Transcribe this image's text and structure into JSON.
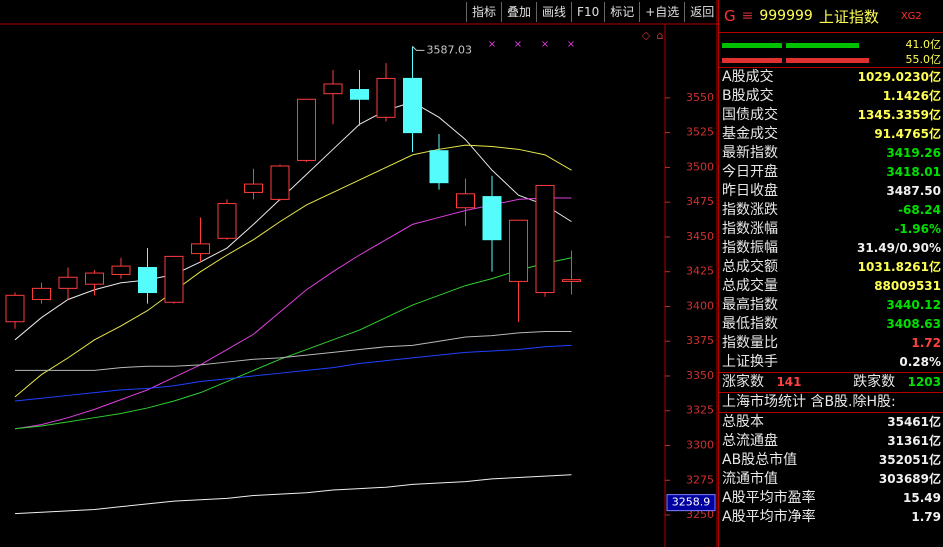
{
  "toolbar": [
    "指标",
    "叠加",
    "画线",
    "F10",
    "标记",
    "+自选",
    "返回"
  ],
  "chart_data": {
    "type": "candlestick",
    "open": [
      3389,
      3405,
      3413,
      3416,
      3423,
      3428,
      3403,
      3438,
      3449,
      3482,
      3477,
      3505,
      3553,
      3556,
      3536,
      3564,
      3512,
      3471,
      3479,
      3418,
      3410,
      3418.01
    ],
    "high": [
      3410,
      3417,
      3428,
      3426,
      3435,
      3442,
      3436,
      3464,
      3477,
      3499,
      3502,
      3549,
      3570,
      3570,
      3575,
      3587.03,
      3524,
      3492,
      3494,
      3462,
      3487,
      3440.12
    ],
    "low": [
      3384,
      3402,
      3405,
      3408,
      3420,
      3402,
      3402,
      3432,
      3448,
      3477,
      3476,
      3504,
      3531,
      3530,
      3533,
      3511,
      3484,
      3458,
      3425,
      3389,
      3407,
      3408.63
    ],
    "close": [
      3408,
      3413,
      3421,
      3424,
      3429,
      3410,
      3436,
      3445,
      3474,
      3488,
      3501,
      3549,
      3560,
      3549,
      3564,
      3525,
      3489,
      3481,
      3448,
      3462,
      3487,
      3419.26
    ],
    "up_color": "#ff3c3c",
    "down_color": "#54fcfc",
    "series": [
      {
        "color": "#e8e8e8",
        "values": [
          3376,
          3392,
          3405,
          3412,
          3417,
          3419,
          3423,
          3432,
          3442,
          3459,
          3477,
          3495,
          3513,
          3531,
          3541,
          3547,
          3536,
          3520,
          3498,
          3480,
          3473,
          3461
        ]
      },
      {
        "color": "#e8e84c",
        "values": [
          3335,
          3351,
          3363,
          3376,
          3386,
          3397,
          3411,
          3425,
          3437,
          3448,
          3461,
          3473,
          3482,
          3491,
          3500,
          3509,
          3513,
          3516,
          3515,
          3513,
          3509,
          3498
        ]
      },
      {
        "color": "#e040e0",
        "values": [
          3312,
          3315,
          3320,
          3326,
          3333,
          3340,
          3349,
          3358,
          3369,
          3380,
          3396,
          3412,
          3425,
          3437,
          3448,
          3459,
          3464,
          3469,
          3473,
          3477,
          3478,
          3478
        ]
      },
      {
        "color": "#30d030",
        "values": [
          3312,
          3314,
          3317,
          3320,
          3323,
          3327,
          3332,
          3338,
          3346,
          3354,
          3362,
          3369,
          3376,
          3383,
          3392,
          3401,
          3408,
          3415,
          3420,
          3426,
          3431,
          3435
        ]
      },
      {
        "color": "#b8b8b8",
        "values": [
          3354,
          3354,
          3354,
          3354,
          3356,
          3357,
          3357,
          3358,
          3360,
          3362,
          3363,
          3365,
          3367,
          3369,
          3371,
          3372,
          3375,
          3378,
          3379,
          3381,
          3382,
          3382
        ]
      },
      {
        "color": "#2040ff",
        "values": [
          3332,
          3334,
          3336,
          3338,
          3340,
          3341,
          3343,
          3346,
          3348,
          3350,
          3352,
          3354,
          3356,
          3359,
          3361,
          3363,
          3365,
          3367,
          3368,
          3369,
          3371,
          3372
        ]
      },
      {
        "color": "#f0f0f0",
        "values": [
          3251,
          3252,
          3253,
          3254,
          3256,
          3258,
          3260,
          3261,
          3262,
          3264,
          3265,
          3266,
          3268,
          3269,
          3270,
          3272,
          3273,
          3274,
          3276,
          3277,
          3278,
          3279
        ]
      }
    ],
    "annotation_index": 15,
    "cursor_value": 3258.9,
    "ylim": [
      3227,
      3606
    ],
    "yticks": [
      3250,
      3275,
      3300,
      3325,
      3350,
      3375,
      3400,
      3425,
      3450,
      3475,
      3500,
      3525,
      3550
    ]
  },
  "panel": {
    "header": {
      "prefix": "G",
      "menu": "≡",
      "code": "999999",
      "name": "上证指数",
      "tag": "XG2"
    },
    "flow_bars": [
      "41.0亿",
      "55.0亿"
    ],
    "stats": [
      {
        "label": "A股成交",
        "value": "1029.0230亿",
        "color": "#ffff54"
      },
      {
        "label": "B股成交",
        "value": "1.1426亿",
        "color": "#ffff54"
      },
      {
        "label": "国债成交",
        "value": "1345.3359亿",
        "color": "#ffff54"
      },
      {
        "label": "基金成交",
        "value": "91.4765亿",
        "color": "#ffff54"
      },
      {
        "label": "最新指数",
        "value": "3419.26",
        "color": "#00e000"
      },
      {
        "label": "今日开盘",
        "value": "3418.01",
        "color": "#00e000"
      },
      {
        "label": "昨日收盘",
        "value": "3487.50",
        "color": "#f0f0f0"
      },
      {
        "label": "指数涨跌",
        "value": "-68.24",
        "color": "#00e000"
      },
      {
        "label": "指数涨幅",
        "value": "-1.96%",
        "color": "#00e000"
      },
      {
        "label": "指数振幅",
        "value": "31.49/0.90%",
        "color": "#f0f0f0"
      },
      {
        "label": "总成交额",
        "value": "1031.8261亿",
        "color": "#ffff54"
      },
      {
        "label": "总成交量",
        "value": "88009531",
        "color": "#ffff54"
      },
      {
        "label": "最高指数",
        "value": "3440.12",
        "color": "#00e000"
      },
      {
        "label": "最低指数",
        "value": "3408.63",
        "color": "#00e000"
      },
      {
        "label": "指数量比",
        "value": "1.72",
        "color": "#ff4040"
      },
      {
        "label": "上证换手",
        "value": "0.28%",
        "color": "#f0f0f0"
      }
    ],
    "breadth": {
      "up_label": "涨家数",
      "up": "141",
      "down_label": "跌家数",
      "down": "1203"
    },
    "market_title": "上海市场统计 含B股.除H股:",
    "market": [
      {
        "label": "总股本",
        "value": "35461亿"
      },
      {
        "label": "总流通盘",
        "value": "31361亿"
      },
      {
        "label": "AB股总市值",
        "value": "352051亿"
      },
      {
        "label": "流通市值",
        "value": "303689亿"
      },
      {
        "label": "A股平均市盈率",
        "value": "15.49"
      },
      {
        "label": "A股平均市净率",
        "value": "1.79"
      }
    ]
  }
}
